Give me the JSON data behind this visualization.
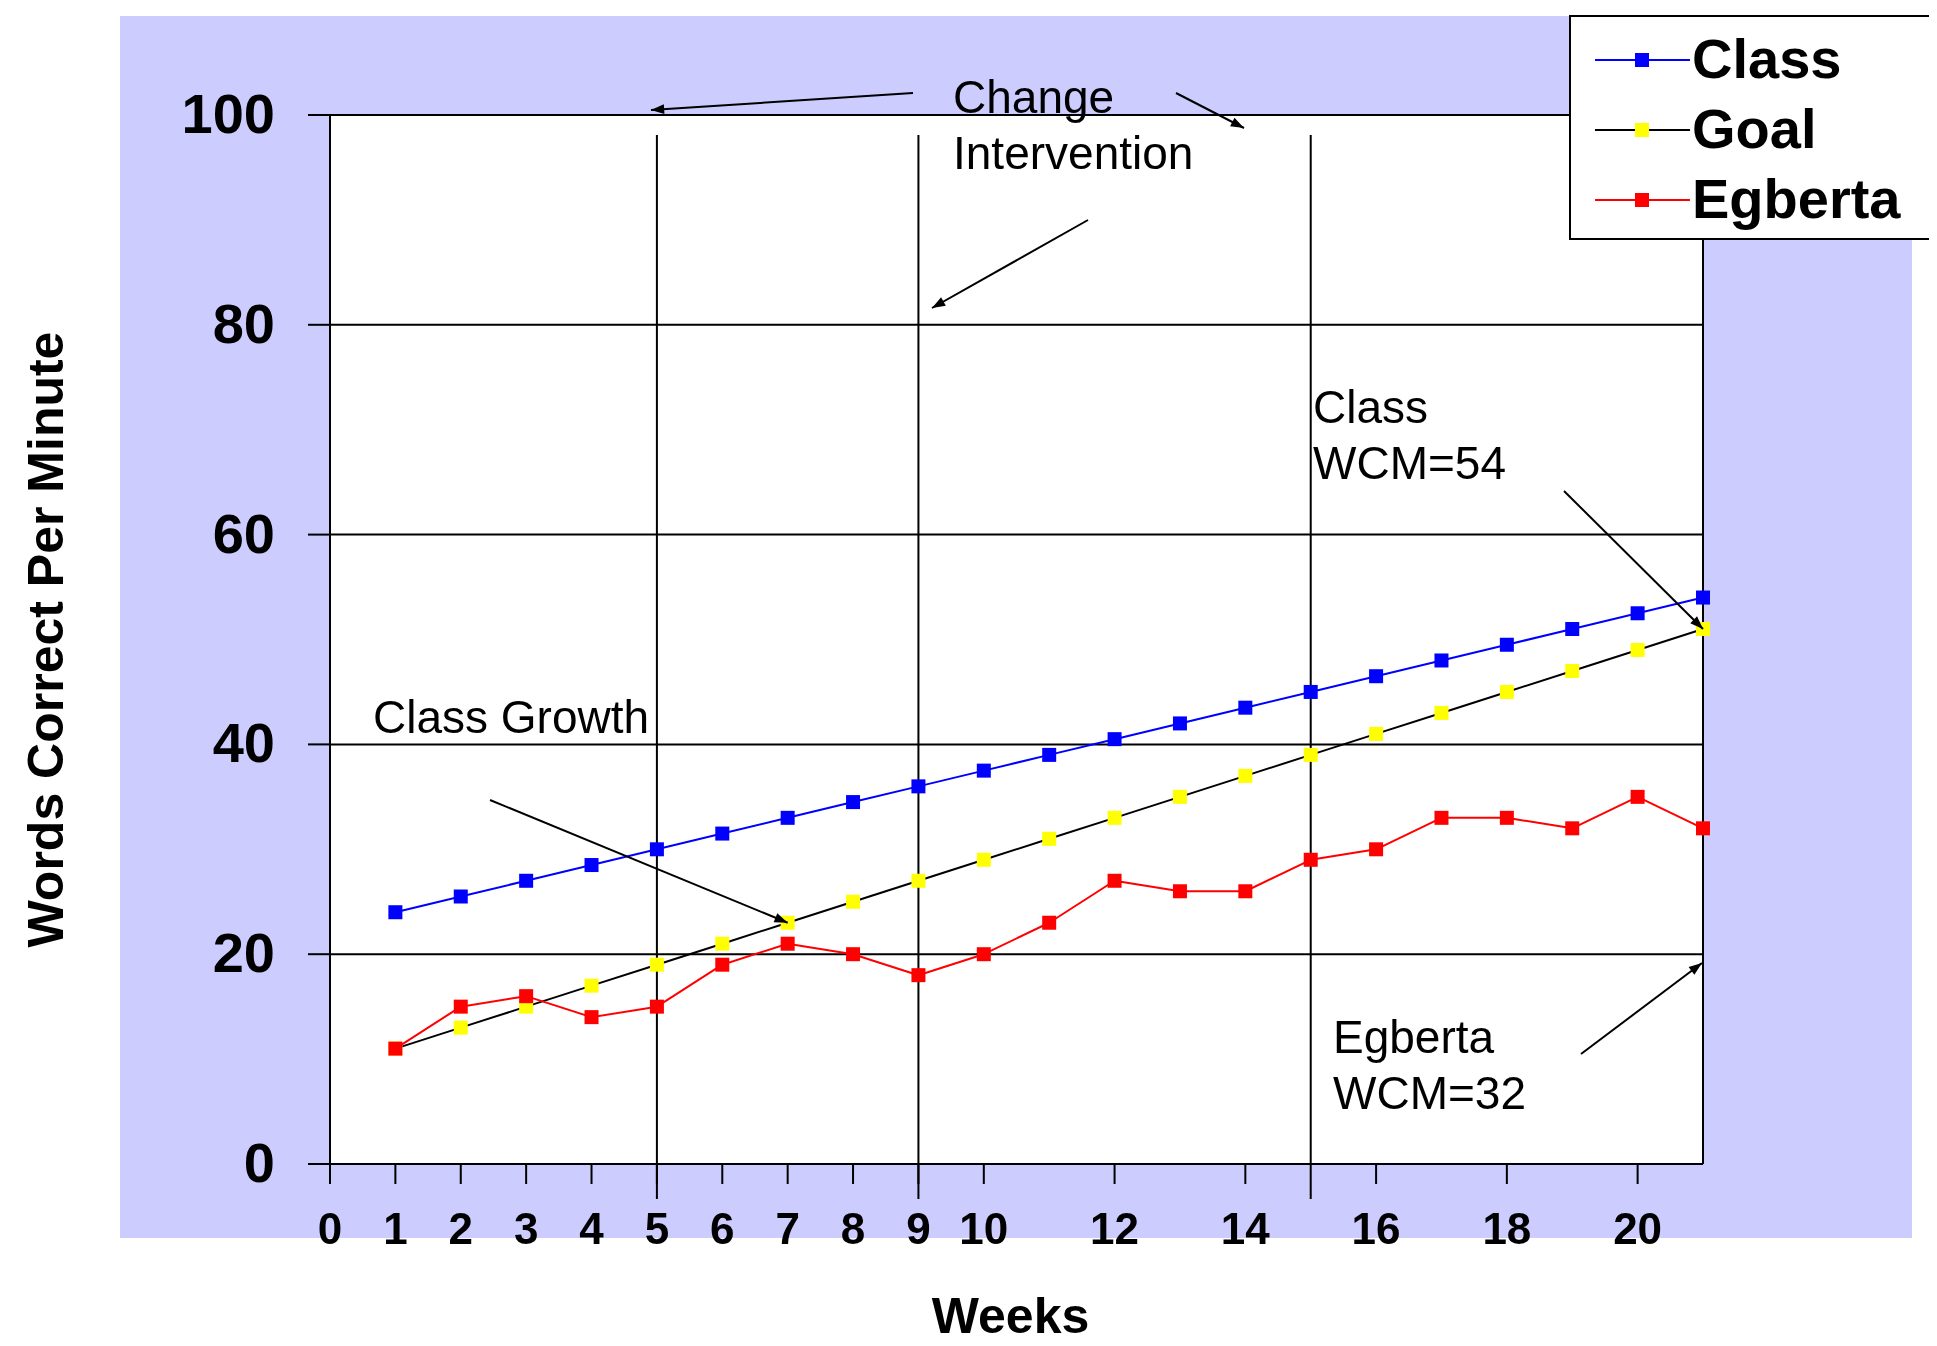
{
  "chart_data": {
    "type": "line",
    "xlabel": "Weeks",
    "ylabel": "Words Correct Per Minute",
    "x": [
      1,
      2,
      3,
      4,
      5,
      6,
      7,
      8,
      9,
      10,
      11,
      12,
      13,
      14,
      15,
      16,
      17,
      18,
      19,
      20,
      21
    ],
    "xlim": [
      0,
      21
    ],
    "xticks": [
      0,
      1,
      2,
      3,
      4,
      5,
      6,
      7,
      8,
      9,
      10,
      12,
      14,
      16,
      18,
      20
    ],
    "ylim": [
      0,
      100
    ],
    "yticks": [
      0,
      20,
      40,
      60,
      80,
      100
    ],
    "grid": "y",
    "legend": "top right",
    "marker": "square",
    "line_style": "solid",
    "series": [
      {
        "name": "Class",
        "color": "#0000ff",
        "values": [
          24,
          25.5,
          27,
          28.5,
          30,
          31.5,
          33,
          34.5,
          36,
          37.5,
          39,
          40.5,
          42,
          43.5,
          45,
          46.5,
          48,
          49.5,
          51,
          52.5,
          54
        ]
      },
      {
        "name": "Goal",
        "color": "#ffff00",
        "values": [
          11,
          13,
          15,
          17,
          19,
          21,
          23,
          25,
          27,
          29,
          31,
          33,
          35,
          37,
          39,
          41,
          43,
          45,
          47,
          49,
          51
        ]
      },
      {
        "name": "Egberta",
        "color": "#ff0000",
        "values": [
          11,
          15,
          16,
          14,
          15,
          19,
          21,
          20,
          18,
          20,
          23,
          27,
          26,
          26,
          29,
          30,
          33,
          33,
          32,
          35,
          32
        ]
      }
    ],
    "ref_lines": [
      {
        "axis": "x",
        "value": 5,
        "color": "#000000"
      },
      {
        "axis": "x",
        "value": 9,
        "color": "#000000"
      },
      {
        "axis": "x",
        "value": 15,
        "color": "#000000"
      }
    ],
    "annotations": [
      "Change Intervention",
      {
        "text": "Class Growth",
        "x": 7,
        "y": 23
      },
      {
        "text": "Class WCM=54",
        "x": 21,
        "y": 51
      },
      "Egberta WCM=32"
    ]
  }
}
